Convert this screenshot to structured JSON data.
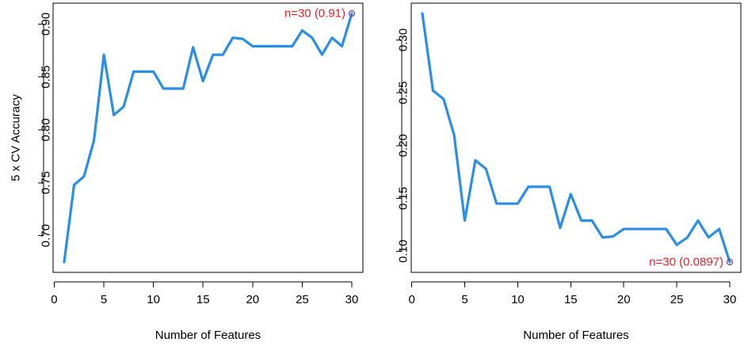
{
  "chart_data": [
    {
      "type": "line",
      "title": "",
      "xlabel": "Number of Features",
      "ylabel": "5 x CV Accuracy",
      "xlim": [
        1,
        30
      ],
      "ylim": [
        0.675,
        0.91
      ],
      "xticks": [
        0,
        5,
        10,
        15,
        20,
        25,
        30
      ],
      "xtick_labels": [
        "0",
        "5",
        "10",
        "15",
        "20",
        "25",
        "30"
      ],
      "yticks": [
        0.7,
        0.75,
        0.8,
        0.85,
        0.9
      ],
      "ytick_labels": [
        "0.70",
        "0.75",
        "0.80",
        "0.85",
        "0.90"
      ],
      "grid": false,
      "legend": "none",
      "line_color": "#2b8ee6",
      "annotation_color": "#e8212b",
      "x": [
        1,
        2,
        3,
        4,
        5,
        6,
        7,
        8,
        9,
        10,
        11,
        12,
        13,
        14,
        15,
        16,
        17,
        18,
        19,
        20,
        21,
        22,
        23,
        24,
        25,
        26,
        27,
        28,
        29,
        30
      ],
      "values": [
        0.675,
        0.748,
        0.756,
        0.79,
        0.871,
        0.814,
        0.822,
        0.855,
        0.855,
        0.855,
        0.839,
        0.839,
        0.839,
        0.878,
        0.846,
        0.871,
        0.871,
        0.887,
        0.886,
        0.879,
        0.879,
        0.879,
        0.879,
        0.879,
        0.894,
        0.887,
        0.871,
        0.887,
        0.879,
        0.91
      ],
      "annotation": {
        "x": 30,
        "y": 0.91,
        "text": "n=30 (0.91)",
        "anchor": "end"
      }
    },
    {
      "type": "line",
      "title": "",
      "xlabel": "Number of Features",
      "ylabel": "",
      "xlim": [
        1,
        30
      ],
      "ylim": [
        0.0897,
        0.325
      ],
      "xticks": [
        0,
        5,
        10,
        15,
        20,
        25,
        30
      ],
      "xtick_labels": [
        "0",
        "5",
        "10",
        "15",
        "20",
        "25",
        "30"
      ],
      "yticks": [
        0.1,
        0.15,
        0.2,
        0.25,
        0.3
      ],
      "ytick_labels": [
        "0.10",
        "0.15",
        "0.20",
        "0.25",
        "0.30"
      ],
      "grid": false,
      "legend": "none",
      "line_color": "#2b8ee6",
      "annotation_color": "#e8212b",
      "x": [
        1,
        2,
        3,
        4,
        5,
        6,
        7,
        8,
        9,
        10,
        11,
        12,
        13,
        14,
        15,
        16,
        17,
        18,
        19,
        20,
        21,
        22,
        23,
        24,
        25,
        26,
        27,
        28,
        29,
        30
      ],
      "values": [
        0.325,
        0.252,
        0.244,
        0.21,
        0.129,
        0.186,
        0.178,
        0.145,
        0.145,
        0.145,
        0.161,
        0.161,
        0.161,
        0.122,
        0.154,
        0.129,
        0.129,
        0.113,
        0.114,
        0.121,
        0.121,
        0.121,
        0.121,
        0.121,
        0.106,
        0.113,
        0.129,
        0.113,
        0.121,
        0.0897
      ],
      "annotation": {
        "x": 30,
        "y": 0.0897,
        "text": "n=30 (0.0897)",
        "anchor": "end"
      }
    }
  ]
}
